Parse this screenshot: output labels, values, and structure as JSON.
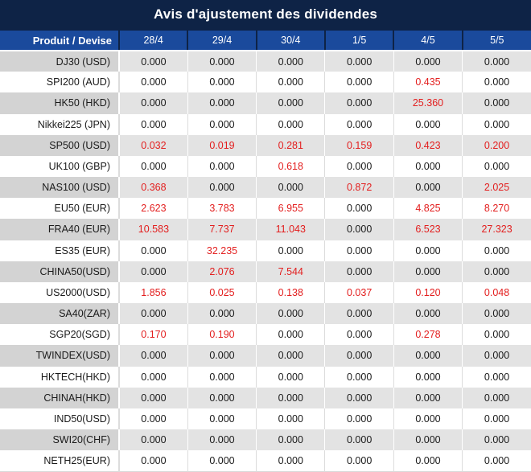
{
  "title": "Avis d'ajustement des dividendes",
  "table": {
    "header": [
      "Produit / Devise",
      "28/4",
      "29/4",
      "30/4",
      "1/5",
      "4/5",
      "5/5"
    ],
    "rows": [
      {
        "product": "DJ30 (USD)",
        "values": [
          "0.000",
          "0.000",
          "0.000",
          "0.000",
          "0.000",
          "0.000"
        ]
      },
      {
        "product": "SPI200 (AUD)",
        "values": [
          "0.000",
          "0.000",
          "0.000",
          "0.000",
          "0.435",
          "0.000"
        ]
      },
      {
        "product": "HK50 (HKD)",
        "values": [
          "0.000",
          "0.000",
          "0.000",
          "0.000",
          "25.360",
          "0.000"
        ]
      },
      {
        "product": "Nikkei225 (JPN)",
        "values": [
          "0.000",
          "0.000",
          "0.000",
          "0.000",
          "0.000",
          "0.000"
        ]
      },
      {
        "product": "SP500 (USD)",
        "values": [
          "0.032",
          "0.019",
          "0.281",
          "0.159",
          "0.423",
          "0.200"
        ]
      },
      {
        "product": "UK100 (GBP)",
        "values": [
          "0.000",
          "0.000",
          "0.618",
          "0.000",
          "0.000",
          "0.000"
        ]
      },
      {
        "product": "NAS100 (USD)",
        "values": [
          "0.368",
          "0.000",
          "0.000",
          "0.872",
          "0.000",
          "2.025"
        ]
      },
      {
        "product": "EU50 (EUR)",
        "values": [
          "2.623",
          "3.783",
          "6.955",
          "0.000",
          "4.825",
          "8.270"
        ]
      },
      {
        "product": "FRA40 (EUR)",
        "values": [
          "10.583",
          "7.737",
          "11.043",
          "0.000",
          "6.523",
          "27.323"
        ]
      },
      {
        "product": "ES35 (EUR)",
        "values": [
          "0.000",
          "32.235",
          "0.000",
          "0.000",
          "0.000",
          "0.000"
        ]
      },
      {
        "product": "CHINA50(USD)",
        "values": [
          "0.000",
          "2.076",
          "7.544",
          "0.000",
          "0.000",
          "0.000"
        ]
      },
      {
        "product": "US2000(USD)",
        "values": [
          "1.856",
          "0.025",
          "0.138",
          "0.037",
          "0.120",
          "0.048"
        ]
      },
      {
        "product": "SA40(ZAR)",
        "values": [
          "0.000",
          "0.000",
          "0.000",
          "0.000",
          "0.000",
          "0.000"
        ]
      },
      {
        "product": "SGP20(SGD)",
        "values": [
          "0.170",
          "0.190",
          "0.000",
          "0.000",
          "0.278",
          "0.000"
        ]
      },
      {
        "product": "TWINDEX(USD)",
        "values": [
          "0.000",
          "0.000",
          "0.000",
          "0.000",
          "0.000",
          "0.000"
        ]
      },
      {
        "product": "HKTECH(HKD)",
        "values": [
          "0.000",
          "0.000",
          "0.000",
          "0.000",
          "0.000",
          "0.000"
        ]
      },
      {
        "product": "CHINAH(HKD)",
        "values": [
          "0.000",
          "0.000",
          "0.000",
          "0.000",
          "0.000",
          "0.000"
        ]
      },
      {
        "product": "IND50(USD)",
        "values": [
          "0.000",
          "0.000",
          "0.000",
          "0.000",
          "0.000",
          "0.000"
        ]
      },
      {
        "product": "SWI20(CHF)",
        "values": [
          "0.000",
          "0.000",
          "0.000",
          "0.000",
          "0.000",
          "0.000"
        ]
      },
      {
        "product": "NETH25(EUR)",
        "values": [
          "0.000",
          "0.000",
          "0.000",
          "0.000",
          "0.000",
          "0.000"
        ]
      }
    ]
  },
  "colors": {
    "title_bg": "#0e2346",
    "header_bg": "#1a4a9c",
    "label_gray": "#d3d3d3",
    "value_gray": "#e3e3e3",
    "nonzero_red": "#e31e1e",
    "text_black": "#1a1a1a"
  }
}
